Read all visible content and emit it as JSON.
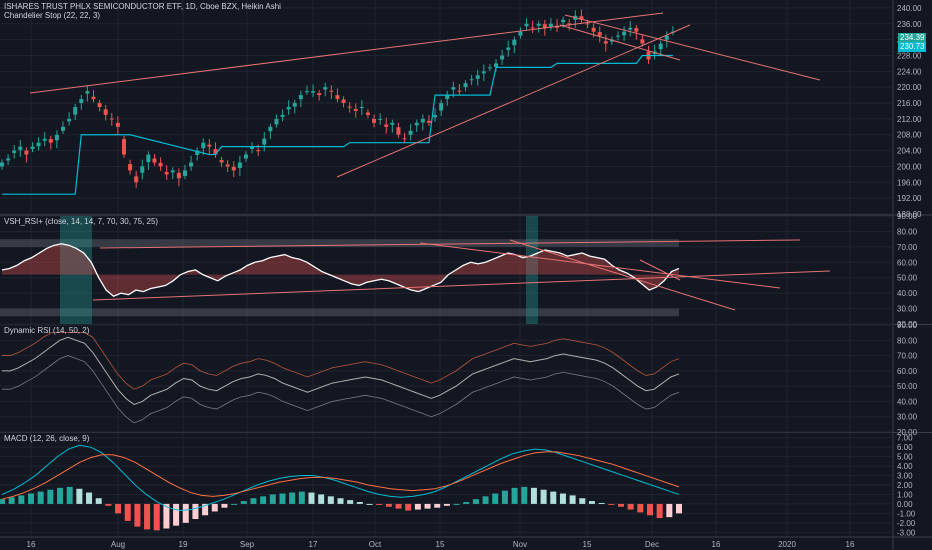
{
  "colors": {
    "bg": "#131722",
    "grid": "#1f2430",
    "separator": "#3a3e4a",
    "axis_text": "#b2b5be",
    "up": "#26a69a",
    "down": "#ef5350",
    "trendline": "#e57373",
    "stop": "#00bcd4",
    "rsi_line": "#ffffff",
    "rsi_ma": "#b0b0b0",
    "band": "#787b86",
    "signal": "#ff7043",
    "macd": "#00bcd4",
    "hist_up_strong": "#26a69a",
    "hist_up_weak": "#b2dfdb",
    "hist_dn_strong": "#ef5350",
    "hist_dn_weak": "#ffcdd2",
    "badge_last": "#26a69a",
    "badge_stop": "#00bcd4"
  },
  "main": {
    "title": "ISHARES TRUST PHLX SEMICONDUCTOR ETF, 1D, Cboe BZX, Heikin Ashi",
    "indicator": "Chandelier Stop (22, 22, 3)",
    "last_price": "234.39",
    "stop_price": "230.73"
  },
  "panes": {
    "rsi_title": "VSH_RSI+ (close, 14, 14, 7, 70, 30, 75, 25)",
    "dyn_title": "Dynamic RSI (14, 50, 2)",
    "macd_title": "MACD (12, 26, close, 9)"
  },
  "x_axis": {
    "labels": [
      "16",
      "Aug",
      "19",
      "Sep",
      "17",
      "Oct",
      "15",
      "Nov",
      "15",
      "Dec",
      "16",
      "2020",
      "16"
    ]
  },
  "chart_data": [
    {
      "type": "candlestick",
      "title": "ISHARES TRUST PHLX SEMICONDUCTOR ETF, 1D, Cboe BZX, Heikin Ashi",
      "ylim": [
        188,
        242
      ],
      "yticks": [
        "240.00",
        "236.00",
        "232.00",
        "228.00",
        "224.00",
        "220.00",
        "216.00",
        "212.00",
        "208.00",
        "204.00",
        "200.00",
        "196.00",
        "192.00",
        "188.00"
      ],
      "close": [
        201,
        202,
        204,
        205,
        203,
        205,
        206,
        207,
        206,
        208,
        210,
        212,
        215,
        217,
        219,
        217,
        215,
        213,
        212,
        210,
        203,
        199,
        196,
        200,
        203,
        201,
        200,
        198,
        199,
        197,
        199,
        201,
        204,
        206,
        205,
        203,
        201,
        200,
        199,
        201,
        203,
        205,
        204,
        207,
        210,
        212,
        213,
        215,
        216,
        218,
        219,
        219,
        218,
        220,
        219,
        217,
        216,
        215,
        214,
        215,
        213,
        211,
        212,
        210,
        211,
        208,
        207,
        209,
        211,
        212,
        211,
        213,
        216,
        218,
        220,
        219,
        221,
        222,
        223,
        224,
        225,
        226,
        228,
        230,
        232,
        234,
        236,
        235,
        236,
        235,
        236,
        235,
        237,
        236,
        238,
        237,
        236,
        234,
        233,
        231,
        232,
        233,
        234,
        235,
        234,
        231,
        227,
        229,
        231,
        233,
        234
      ]
    },
    {
      "type": "line",
      "title": "VSH_RSI+ (close, 14, 14, 7, 70, 30, 75, 25)",
      "ylim": [
        20,
        90
      ],
      "yticks": [
        "90.00",
        "80.00",
        "70.00",
        "60.00",
        "50.00",
        "40.00",
        "30.00",
        "20.00"
      ],
      "values": [
        55,
        56,
        58,
        61,
        63,
        66,
        69,
        71,
        72,
        71,
        69,
        66,
        60,
        50,
        42,
        38,
        40,
        39,
        42,
        41,
        43,
        44,
        45,
        48,
        52,
        54,
        55,
        52,
        50,
        48,
        51,
        53,
        55,
        58,
        60,
        61,
        63,
        64,
        65,
        63,
        62,
        60,
        57,
        54,
        52,
        50,
        48,
        46,
        45,
        47,
        48,
        49,
        48,
        46,
        44,
        42,
        41,
        43,
        45,
        47,
        52,
        55,
        58,
        60,
        59,
        60,
        62,
        64,
        66,
        65,
        63,
        64,
        66,
        68,
        67,
        66,
        64,
        65,
        66,
        64,
        63,
        62,
        58,
        55,
        53,
        50,
        46,
        42,
        44,
        48,
        54,
        56
      ]
    },
    {
      "type": "line",
      "title": "Dynamic RSI (14, 50, 2)",
      "ylim": [
        20,
        90
      ],
      "yticks": [
        "90.00",
        "80.00",
        "70.00",
        "60.00",
        "50.00",
        "40.00",
        "30.00",
        "20.00"
      ],
      "values": [
        60,
        60,
        62,
        65,
        68,
        72,
        76,
        80,
        82,
        80,
        78,
        72,
        64,
        56,
        48,
        42,
        38,
        40,
        44,
        46,
        48,
        52,
        55,
        54,
        50,
        48,
        47,
        50,
        53,
        55,
        56,
        58,
        57,
        55,
        52,
        50,
        48,
        46,
        48,
        50,
        52,
        53,
        54,
        55,
        56,
        55,
        54,
        52,
        50,
        48,
        46,
        44,
        42,
        44,
        47,
        50,
        54,
        58,
        60,
        62,
        64,
        66,
        68,
        67,
        66,
        67,
        68,
        70,
        71,
        70,
        69,
        68,
        67,
        65,
        62,
        58,
        54,
        50,
        47,
        48,
        52,
        56,
        58
      ]
    },
    {
      "type": "bar",
      "title": "MACD (12, 26, close, 9)",
      "ylim": [
        -3.5,
        7.5
      ],
      "yticks": [
        "7.00",
        "6.00",
        "5.00",
        "4.00",
        "3.00",
        "2.00",
        "1.00",
        "0.00",
        "-1.00",
        "-2.00",
        "-3.00"
      ],
      "histogram": [
        0.5,
        0.7,
        0.9,
        1.1,
        1.3,
        1.5,
        1.7,
        1.8,
        1.6,
        1.2,
        0.6,
        -0.2,
        -1,
        -1.8,
        -2.4,
        -2.7,
        -2.8,
        -2.6,
        -2.3,
        -2,
        -1.6,
        -1.2,
        -0.8,
        -0.4,
        0,
        0.3,
        0.6,
        0.8,
        1,
        1.1,
        1.2,
        1.3,
        1.2,
        1,
        0.8,
        0.6,
        0.4,
        0.2,
        0,
        -0.1,
        -0.3,
        -0.5,
        -0.7,
        -0.6,
        -0.5,
        -0.4,
        -0.2,
        0,
        0.2,
        0.5,
        0.8,
        1.1,
        1.4,
        1.7,
        1.8,
        1.7,
        1.5,
        1.3,
        1.1,
        0.9,
        0.6,
        0.3,
        0.1,
        -0.1,
        -0.3,
        -0.6,
        -0.9,
        -1.2,
        -1.5,
        -1.4,
        -1.0
      ],
      "macd": [
        1,
        1.5,
        2.2,
        3,
        4,
        5,
        5.8,
        6.2,
        6,
        5.4,
        4.4,
        3.2,
        2,
        1,
        0.2,
        -0.4,
        -0.7,
        -0.6,
        -0.3,
        0.1,
        0.5,
        1,
        1.5,
        2,
        2.4,
        2.7,
        2.9,
        3,
        3,
        2.8,
        2.5,
        2.1,
        1.7,
        1.3,
        1,
        0.8,
        0.7,
        0.8,
        1,
        1.3,
        1.8,
        2.4,
        3,
        3.6,
        4.2,
        4.8,
        5.3,
        5.6,
        5.8,
        5.7,
        5.4,
        5,
        4.6,
        4.2,
        3.8,
        3.4,
        3,
        2.6,
        2.2,
        1.8,
        1.4,
        1
      ],
      "signal": [
        0.5,
        0.8,
        1.2,
        1.7,
        2.3,
        3,
        3.7,
        4.4,
        4.9,
        5.2,
        5.2,
        4.9,
        4.4,
        3.7,
        3,
        2.3,
        1.7,
        1.2,
        0.9,
        0.8,
        0.9,
        1.1,
        1.4,
        1.7,
        2,
        2.3,
        2.5,
        2.7,
        2.8,
        2.8,
        2.7,
        2.5,
        2.3,
        2,
        1.8,
        1.6,
        1.5,
        1.4,
        1.5,
        1.6,
        1.9,
        2.3,
        2.8,
        3.3,
        3.8,
        4.3,
        4.7,
        5.1,
        5.4,
        5.5,
        5.5,
        5.3,
        5.1,
        4.8,
        4.5,
        4.2,
        3.8,
        3.4,
        3,
        2.6,
        2.2,
        1.8
      ]
    }
  ]
}
